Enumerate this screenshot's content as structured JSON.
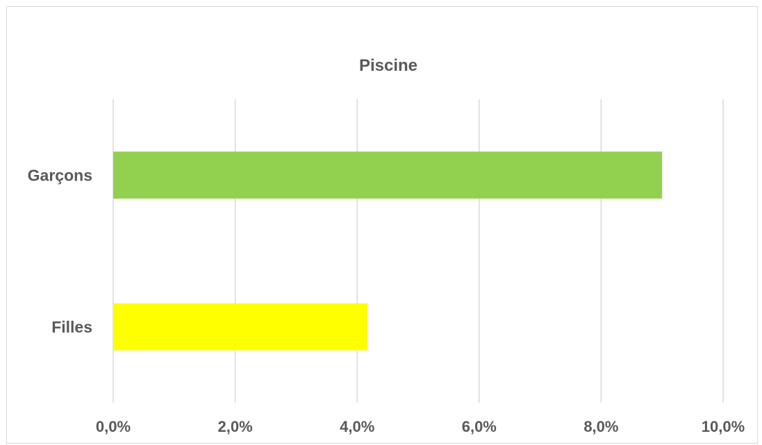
{
  "chart_data": {
    "type": "bar",
    "orientation": "horizontal",
    "title": "Piscine",
    "categories": [
      "Garçons",
      "Filles"
    ],
    "series": [
      {
        "values": [
          9.0,
          4.17
        ],
        "colors": [
          "#92d050",
          "#ffff00"
        ]
      }
    ],
    "xlabel": "",
    "ylabel": "",
    "xlim": [
      0,
      10
    ],
    "xticks": [
      0,
      2,
      4,
      6,
      8,
      10
    ],
    "xtick_labels": [
      "0,0%",
      "2,0%",
      "4,0%",
      "6,0%",
      "8,0%",
      "10,0%"
    ],
    "grid": "vertical",
    "legend": "none",
    "gridline_color": "#d9d9d9",
    "text_color": "#595959"
  }
}
